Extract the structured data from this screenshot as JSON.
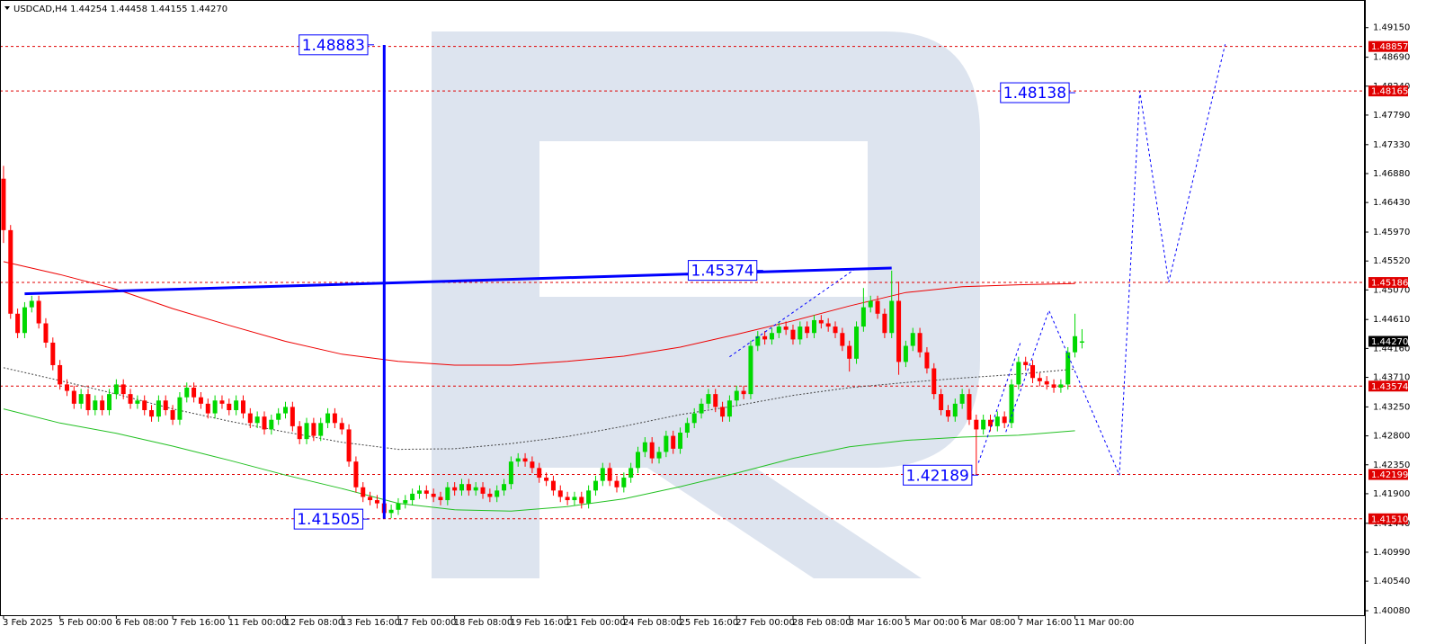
{
  "chart_data": {
    "type": "candlestick",
    "title": "USDCAD,H4  1.44254 1.44458 1.44155 1.44270",
    "categories": [
      "3 Feb 2025",
      null,
      null,
      null,
      null,
      null,
      null,
      null,
      "5 Feb 00:00",
      null,
      null,
      null,
      null,
      null,
      null,
      null,
      "6 Feb 08:00",
      null,
      null,
      null,
      null,
      null,
      null,
      null,
      "7 Feb 16:00",
      null,
      null,
      null,
      null,
      null,
      null,
      null,
      "11 Feb 00:00",
      null,
      null,
      null,
      null,
      null,
      null,
      null,
      "12 Feb 08:00",
      null,
      null,
      null,
      null,
      null,
      null,
      null,
      "13 Feb 16:00",
      null,
      null,
      null,
      null,
      null,
      null,
      null,
      "17 Feb 00:00",
      null,
      null,
      null,
      null,
      null,
      null,
      null,
      "18 Feb 08:00",
      null,
      null,
      null,
      null,
      null,
      null,
      null,
      "19 Feb 16:00",
      null,
      null,
      null,
      null,
      null,
      null,
      null,
      "21 Feb 00:00",
      null,
      null,
      null,
      null,
      null,
      null,
      null,
      "24 Feb 08:00",
      null,
      null,
      null,
      null,
      null,
      null,
      null,
      "25 Feb 16:00",
      null,
      null,
      null,
      null,
      null,
      null,
      null,
      "27 Feb 00:00",
      null,
      null,
      null,
      null,
      null,
      null,
      null,
      "28 Feb 08:00",
      null,
      null,
      null,
      null,
      null,
      null,
      null,
      "3 Mar 16:00",
      null,
      null,
      null,
      null,
      null,
      null,
      null,
      "5 Mar 00:00",
      null,
      null,
      null,
      null,
      null,
      null,
      null,
      "6 Mar 08:00",
      null,
      null,
      null,
      null,
      null,
      null,
      null,
      "7 Mar 16:00",
      null,
      null,
      null,
      null,
      null,
      null,
      null,
      "11 Mar 00:00",
      null
    ],
    "open": [
      1.468,
      1.46,
      1.447,
      1.444,
      1.448,
      1.449,
      1.4455,
      1.4425,
      1.439,
      1.436,
      1.435,
      1.433,
      1.4345,
      1.432,
      1.4335,
      1.432,
      1.4345,
      1.436,
      1.4345,
      1.433,
      1.4335,
      1.432,
      1.431,
      1.4335,
      1.432,
      1.4305,
      1.434,
      1.4355,
      1.434,
      1.433,
      1.4315,
      1.4335,
      1.433,
      1.432,
      1.4335,
      1.4315,
      1.43,
      1.431,
      1.429,
      1.4305,
      1.4315,
      1.4325,
      1.4295,
      1.4275,
      1.43,
      1.428,
      1.43,
      1.4315,
      1.43,
      1.429,
      1.424,
      1.42,
      1.4185,
      1.418,
      1.4175,
      1.416,
      1.4165,
      1.4175,
      1.418,
      1.419,
      1.4195,
      1.419,
      1.4185,
      1.418,
      1.42,
      1.4195,
      1.4205,
      1.4195,
      1.42,
      1.419,
      1.4185,
      1.4195,
      1.4205,
      1.424,
      1.4245,
      1.424,
      1.423,
      1.4215,
      1.421,
      1.4195,
      1.4185,
      1.418,
      1.4185,
      1.4175,
      1.4195,
      1.421,
      1.423,
      1.421,
      1.42,
      1.4215,
      1.423,
      1.4255,
      1.427,
      1.4245,
      1.4255,
      1.428,
      1.426,
      1.4285,
      1.43,
      1.4315,
      1.433,
      1.4345,
      1.4325,
      1.431,
      1.4335,
      1.435,
      1.4345,
      1.442,
      1.4435,
      1.443,
      1.444,
      1.445,
      1.4445,
      1.443,
      1.445,
      1.444,
      1.446,
      1.4455,
      1.445,
      1.444,
      1.442,
      1.44,
      1.445,
      1.448,
      1.449,
      1.447,
      1.444,
      1.449,
      1.4395,
      1.442,
      1.444,
      1.441,
      1.4385,
      1.4345,
      1.432,
      1.431,
      1.433,
      1.4345,
      1.4305,
      1.429,
      1.4305,
      1.4295,
      1.431,
      1.43,
      1.436,
      1.4395,
      1.439,
      1.437,
      1.4365,
      1.436,
      1.4355,
      1.436,
      1.441,
      1.4425
    ],
    "high": [
      1.47,
      1.4608,
      1.4478,
      1.4488,
      1.4498,
      1.4498,
      1.4463,
      1.4433,
      1.4398,
      1.4368,
      1.4358,
      1.4353,
      1.4353,
      1.4343,
      1.4343,
      1.4353,
      1.4368,
      1.4368,
      1.4353,
      1.4343,
      1.4343,
      1.4328,
      1.4343,
      1.4343,
      1.4328,
      1.4348,
      1.4363,
      1.4363,
      1.4348,
      1.4338,
      1.4343,
      1.4343,
      1.4338,
      1.4343,
      1.4343,
      1.4323,
      1.4318,
      1.4318,
      1.4313,
      1.4323,
      1.4333,
      1.4333,
      1.4303,
      1.4308,
      1.4308,
      1.4308,
      1.4323,
      1.4323,
      1.4308,
      1.4298,
      1.4248,
      1.4208,
      1.4193,
      1.4188,
      1.4183,
      1.4173,
      1.4183,
      1.4188,
      1.4198,
      1.4203,
      1.4203,
      1.4198,
      1.4193,
      1.4208,
      1.4208,
      1.4213,
      1.4213,
      1.4208,
      1.4208,
      1.4198,
      1.4203,
      1.4213,
      1.4248,
      1.4253,
      1.4253,
      1.4248,
      1.4238,
      1.4223,
      1.4218,
      1.4203,
      1.4193,
      1.4193,
      1.4193,
      1.4203,
      1.4218,
      1.4238,
      1.4238,
      1.4218,
      1.4223,
      1.4238,
      1.4263,
      1.4278,
      1.4278,
      1.4263,
      1.4288,
      1.4288,
      1.4293,
      1.4308,
      1.4323,
      1.4338,
      1.4353,
      1.4353,
      1.4333,
      1.4343,
      1.4358,
      1.4358,
      1.4428,
      1.4443,
      1.4443,
      1.4448,
      1.4458,
      1.4458,
      1.4453,
      1.4458,
      1.4458,
      1.4468,
      1.4468,
      1.4463,
      1.4458,
      1.4448,
      1.4428,
      1.4458,
      1.451,
      1.4498,
      1.4498,
      1.4478,
      1.4537,
      1.452,
      1.4428,
      1.4448,
      1.4448,
      1.4418,
      1.4393,
      1.4353,
      1.4328,
      1.4338,
      1.4353,
      1.4353,
      1.4313,
      1.4313,
      1.4313,
      1.4318,
      1.4318,
      1.4368,
      1.4403,
      1.4403,
      1.4398,
      1.4378,
      1.4373,
      1.4368,
      1.4368,
      1.4418,
      1.447,
      1.4446
    ],
    "low": [
      1.458,
      1.4462,
      1.4432,
      1.4432,
      1.4472,
      1.4447,
      1.4417,
      1.4382,
      1.4352,
      1.4342,
      1.4322,
      1.4322,
      1.4312,
      1.4312,
      1.4312,
      1.4312,
      1.4337,
      1.4337,
      1.4322,
      1.4322,
      1.4312,
      1.4302,
      1.4302,
      1.4312,
      1.4297,
      1.4297,
      1.4332,
      1.4332,
      1.4322,
      1.4307,
      1.4307,
      1.4322,
      1.4312,
      1.4312,
      1.4307,
      1.4292,
      1.4292,
      1.4282,
      1.4282,
      1.4297,
      1.4307,
      1.4287,
      1.4267,
      1.4267,
      1.4272,
      1.4272,
      1.4292,
      1.4292,
      1.4282,
      1.4232,
      1.4192,
      1.4177,
      1.4172,
      1.4167,
      1.4151,
      1.4152,
      1.4157,
      1.4167,
      1.4172,
      1.4182,
      1.4182,
      1.4177,
      1.4172,
      1.4172,
      1.4187,
      1.4187,
      1.4187,
      1.4187,
      1.4182,
      1.4177,
      1.4177,
      1.4187,
      1.4197,
      1.4232,
      1.4232,
      1.4222,
      1.4207,
      1.4202,
      1.4187,
      1.4177,
      1.4172,
      1.4172,
      1.4167,
      1.4167,
      1.4187,
      1.4202,
      1.4202,
      1.4192,
      1.4192,
      1.4207,
      1.4222,
      1.4247,
      1.4237,
      1.4237,
      1.4247,
      1.4252,
      1.4252,
      1.4277,
      1.4292,
      1.4307,
      1.4322,
      1.4317,
      1.4302,
      1.4302,
      1.4327,
      1.4337,
      1.4337,
      1.4412,
      1.4422,
      1.4422,
      1.4432,
      1.4437,
      1.4422,
      1.4422,
      1.4432,
      1.4432,
      1.4447,
      1.4442,
      1.4432,
      1.4412,
      1.438,
      1.4392,
      1.4442,
      1.4472,
      1.4462,
      1.4432,
      1.4432,
      1.4375,
      1.4387,
      1.4412,
      1.4402,
      1.4377,
      1.4337,
      1.4312,
      1.4302,
      1.4302,
      1.4322,
      1.4297,
      1.4219,
      1.4282,
      1.4287,
      1.4287,
      1.4292,
      1.4292,
      1.4352,
      1.4382,
      1.4362,
      1.4357,
      1.4352,
      1.4347,
      1.4347,
      1.4352,
      1.4402,
      1.4416
    ],
    "close": [
      1.46,
      1.447,
      1.444,
      1.448,
      1.449,
      1.4455,
      1.4425,
      1.439,
      1.436,
      1.435,
      1.433,
      1.4345,
      1.432,
      1.4335,
      1.432,
      1.4345,
      1.436,
      1.4345,
      1.433,
      1.4335,
      1.432,
      1.431,
      1.4335,
      1.432,
      1.4305,
      1.434,
      1.4355,
      1.434,
      1.433,
      1.4315,
      1.4335,
      1.433,
      1.432,
      1.4335,
      1.4315,
      1.43,
      1.431,
      1.429,
      1.4305,
      1.4315,
      1.4325,
      1.4295,
      1.4275,
      1.43,
      1.428,
      1.43,
      1.4315,
      1.43,
      1.429,
      1.424,
      1.42,
      1.4185,
      1.418,
      1.4175,
      1.416,
      1.4165,
      1.4175,
      1.418,
      1.419,
      1.4195,
      1.419,
      1.4185,
      1.418,
      1.42,
      1.4195,
      1.4205,
      1.4195,
      1.42,
      1.419,
      1.4185,
      1.4195,
      1.4205,
      1.424,
      1.4245,
      1.424,
      1.423,
      1.4215,
      1.421,
      1.4195,
      1.4185,
      1.418,
      1.4185,
      1.4175,
      1.4195,
      1.421,
      1.423,
      1.421,
      1.42,
      1.4215,
      1.423,
      1.4255,
      1.427,
      1.4245,
      1.4255,
      1.428,
      1.426,
      1.4285,
      1.43,
      1.4315,
      1.433,
      1.4345,
      1.4325,
      1.431,
      1.4335,
      1.435,
      1.4345,
      1.442,
      1.4435,
      1.443,
      1.444,
      1.445,
      1.4445,
      1.443,
      1.445,
      1.444,
      1.446,
      1.4455,
      1.445,
      1.444,
      1.442,
      1.44,
      1.445,
      1.448,
      1.449,
      1.447,
      1.444,
      1.449,
      1.4395,
      1.442,
      1.444,
      1.441,
      1.4385,
      1.4345,
      1.432,
      1.431,
      1.433,
      1.4345,
      1.4305,
      1.429,
      1.4305,
      1.4295,
      1.431,
      1.43,
      1.436,
      1.4395,
      1.439,
      1.437,
      1.4365,
      1.436,
      1.4355,
      1.436,
      1.441,
      1.4435,
      1.4427
    ],
    "up_color": "#00d800",
    "down_color": "#ff0000",
    "xlim": [
      -0.5,
      193
    ],
    "ylim": [
      1.4001,
      1.4958
    ],
    "yticks": [
      {
        "value": 1.4915,
        "label": "1.49150"
      },
      {
        "value": 1.4869,
        "label": "1.48690"
      },
      {
        "value": 1.4824,
        "label": "1.48240"
      },
      {
        "value": 1.4779,
        "label": "1.47790"
      },
      {
        "value": 1.4733,
        "label": "1.47330"
      },
      {
        "value": 1.4688,
        "label": "1.46880"
      },
      {
        "value": 1.4643,
        "label": "1.46430"
      },
      {
        "value": 1.4597,
        "label": "1.45970"
      },
      {
        "value": 1.4552,
        "label": "1.45520"
      },
      {
        "value": 1.4507,
        "label": "1.45070"
      },
      {
        "value": 1.4461,
        "label": "1.44610"
      },
      {
        "value": 1.4416,
        "label": "1.44160"
      },
      {
        "value": 1.4371,
        "label": "1.43710"
      },
      {
        "value": 1.4325,
        "label": "1.43250"
      },
      {
        "value": 1.428,
        "label": "1.42800"
      },
      {
        "value": 1.4235,
        "label": "1.42350"
      },
      {
        "value": 1.419,
        "label": "1.41900"
      },
      {
        "value": 1.4144,
        "label": "1.41440"
      },
      {
        "value": 1.4099,
        "label": "1.40990"
      },
      {
        "value": 1.4054,
        "label": "1.40540"
      },
      {
        "value": 1.4008,
        "label": "1.40080"
      }
    ],
    "levels": [
      1.48857,
      1.48165,
      1.45186,
      1.43574,
      1.42199,
      {
        "value": 1.4151,
        "label": "1.41510"
      }
    ],
    "level_color": "#e00000",
    "last_price": {
      "value": 1.4427,
      "label": "1.44270"
    },
    "moving_averages": [
      {
        "color": "#ee0000",
        "dashed": false,
        "x": [
          0,
          8,
          16,
          24,
          32,
          40,
          48,
          56,
          64,
          72,
          80,
          88,
          96,
          104,
          112,
          120,
          128,
          136,
          144,
          152
        ],
        "values": [
          1.4551,
          1.4531,
          1.4508,
          1.4478,
          1.4452,
          1.4427,
          1.4407,
          1.4396,
          1.439,
          1.439,
          1.4396,
          1.4404,
          1.4418,
          1.4438,
          1.4459,
          1.4482,
          1.4503,
          1.4512,
          1.4515,
          1.4517
        ]
      },
      {
        "color": "#22c022",
        "dashed": false,
        "x": [
          0,
          8,
          16,
          24,
          32,
          40,
          48,
          56,
          64,
          72,
          80,
          88,
          96,
          104,
          112,
          120,
          128,
          136,
          144,
          152
        ],
        "values": [
          1.4322,
          1.43,
          1.4284,
          1.4264,
          1.4242,
          1.4219,
          1.4198,
          1.4175,
          1.4165,
          1.4163,
          1.417,
          1.4182,
          1.4201,
          1.4222,
          1.4245,
          1.4263,
          1.4273,
          1.4278,
          1.4281,
          1.4288
        ]
      },
      {
        "color": "#444444",
        "dashed": true,
        "x": [
          0,
          8,
          16,
          24,
          32,
          40,
          48,
          56,
          64,
          72,
          80,
          88,
          96,
          104,
          112,
          120,
          128,
          136,
          144,
          152
        ],
        "values": [
          1.4386,
          1.4366,
          1.4345,
          1.4322,
          1.4303,
          1.4286,
          1.427,
          1.4259,
          1.426,
          1.4268,
          1.4279,
          1.4295,
          1.4313,
          1.4327,
          1.4343,
          1.4355,
          1.4363,
          1.437,
          1.4376,
          1.4384
        ]
      }
    ],
    "annotation_color": "#0000ff",
    "lines": [
      {
        "x": [
          3,
          126
        ],
        "values": [
          1.4501,
          1.4541
        ]
      },
      {
        "x": [
          54,
          54
        ],
        "values": [
          1.4888,
          1.4151
        ]
      }
    ],
    "dotted_lines": [
      {
        "x": [
          103,
          121
        ],
        "values": [
          1.4403,
          1.4541
        ]
      },
      {
        "x": [
          138.3,
          144.3
        ],
        "values": [
          1.4238,
          1.4426
        ]
      },
      {
        "x": [
          142.2,
          148.3,
          158.3,
          161.2,
          165.3,
          173.3
        ],
        "values": [
          1.4286,
          1.4475,
          1.4219,
          1.4816,
          1.4519,
          1.4889
        ]
      }
    ],
    "annotations": [
      {
        "value": 1.48883,
        "x": 51.8
      },
      {
        "value": 1.41505,
        "x": 51.1
      },
      {
        "value": 1.45374,
        "x": 107
      },
      {
        "value": 1.42189,
        "x": 137.5
      },
      {
        "value": 1.48138,
        "x": 151.3
      }
    ]
  }
}
